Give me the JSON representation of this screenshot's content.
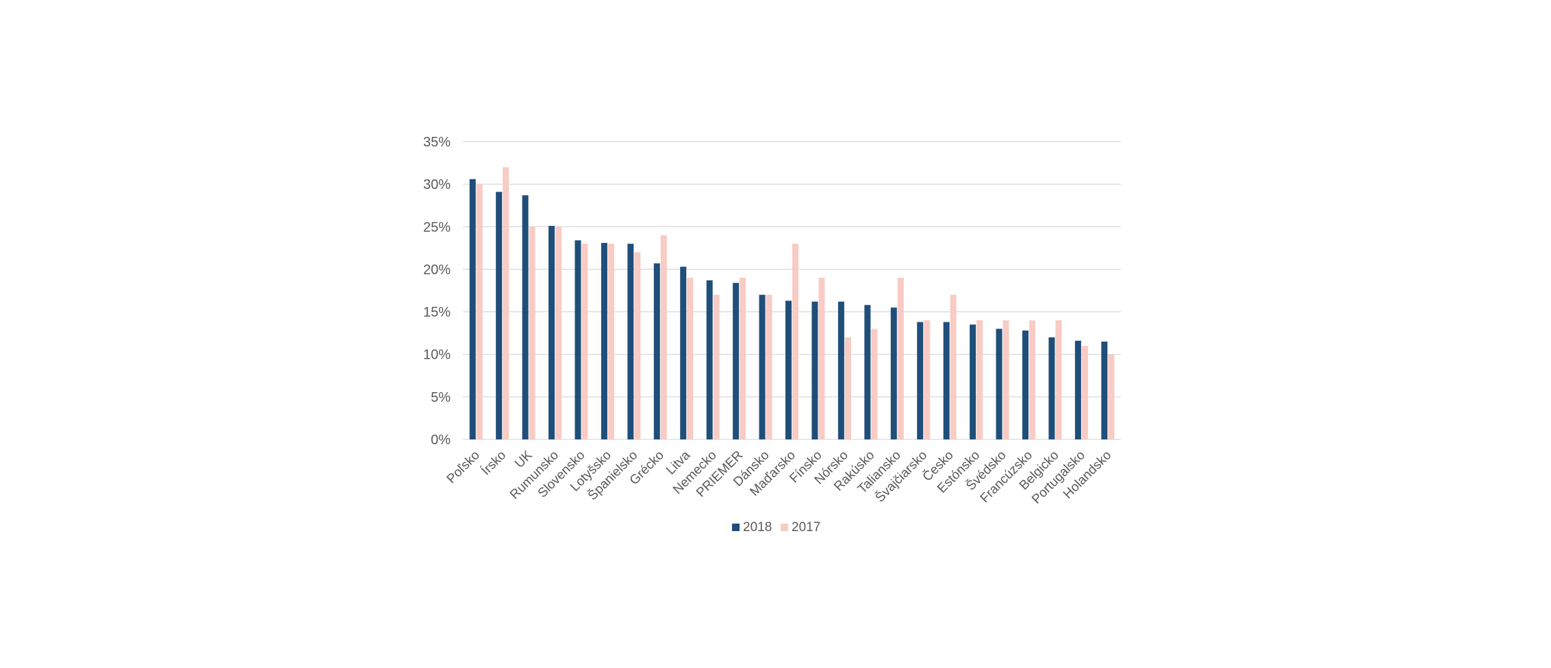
{
  "chart_data": {
    "type": "bar",
    "categories": [
      "Poľsko",
      "Írsko",
      "UK",
      "Rumunsko",
      "Slovensko",
      "Lotyšsko",
      "Španielsko",
      "Grécko",
      "Litva",
      "Nemecko",
      "PRIEMER",
      "Dánsko",
      "Maďarsko",
      "Fínsko",
      "Nórsko",
      "Rakúsko",
      "Taliansko",
      "Švajčiarsko",
      "Česko",
      "Estónsko",
      "Švédsko",
      "Francúzsko",
      "Belgicko",
      "Portugalsko",
      "Holandsko"
    ],
    "series": [
      {
        "name": "2018",
        "color": "#1f4e79",
        "values": [
          30.6,
          29.1,
          28.7,
          25.1,
          23.4,
          23.1,
          23.0,
          20.7,
          20.3,
          18.7,
          18.4,
          17.0,
          16.3,
          16.2,
          16.2,
          15.8,
          15.5,
          13.8,
          13.8,
          13.5,
          13.0,
          12.8,
          12.0,
          11.6,
          11.5
        ]
      },
      {
        "name": "2017",
        "color": "#f8cbc4",
        "values": [
          30,
          32,
          25,
          25,
          23,
          23,
          22,
          24,
          19,
          17,
          19,
          17,
          23,
          19,
          12,
          13,
          19,
          14,
          17,
          14,
          14,
          14,
          14,
          11,
          10
        ]
      }
    ],
    "y_ticks": [
      "0%",
      "5%",
      "10%",
      "15%",
      "20%",
      "25%",
      "30%",
      "35%"
    ],
    "ylim": [
      0,
      35
    ],
    "grid": true,
    "legend_position": "bottom-center"
  }
}
